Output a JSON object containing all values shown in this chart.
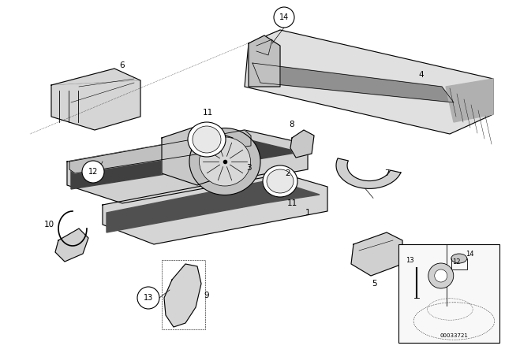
{
  "background_color": "#ffffff",
  "fig_width": 6.4,
  "fig_height": 4.48,
  "dpi": 100,
  "line_color": "#000000",
  "diagram_number": "00033721",
  "border_color": "#000000",
  "gray_light": "#d8d8d8",
  "gray_mid": "#b0b0b0",
  "gray_dark": "#808080",
  "hatch_color": "#555555"
}
